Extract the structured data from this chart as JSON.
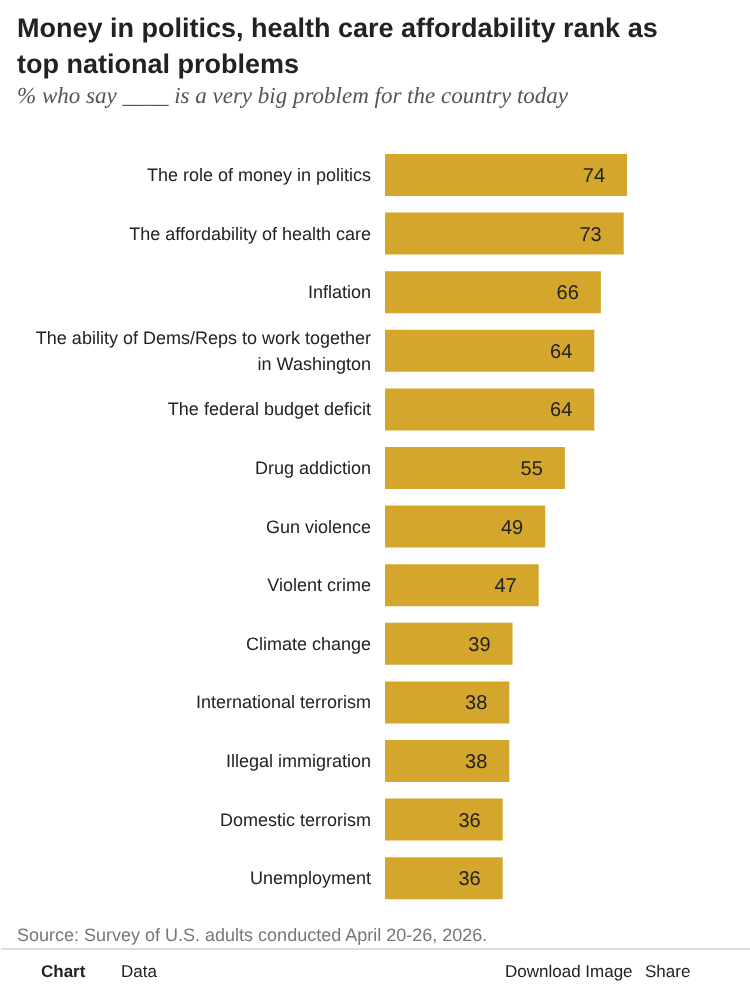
{
  "chart_data": {
    "type": "bar",
    "orientation": "horizontal",
    "title": "Money in politics, health care affordability rank as top national problems",
    "subtitle": "% who say ____ is a very big problem for the country today",
    "categories": [
      "The role of money in politics",
      "The affordability of health care",
      "Inflation",
      "The ability of Dems/Reps to work together in Washington",
      "The federal budget deficit",
      "Drug addiction",
      "Gun violence",
      "Violent crime",
      "Climate change",
      "International terrorism",
      "Illegal immigration",
      "Domestic terrorism",
      "Unemployment"
    ],
    "values": [
      74,
      73,
      66,
      64,
      64,
      55,
      49,
      47,
      39,
      38,
      38,
      36,
      36
    ],
    "color": "#d4a72c",
    "data_labels": true,
    "annotations": [
      "Source: Survey of U.S. adults conducted April 20-26, 2026.",
      "Chart",
      "Data",
      "Download Image",
      "Share"
    ]
  }
}
